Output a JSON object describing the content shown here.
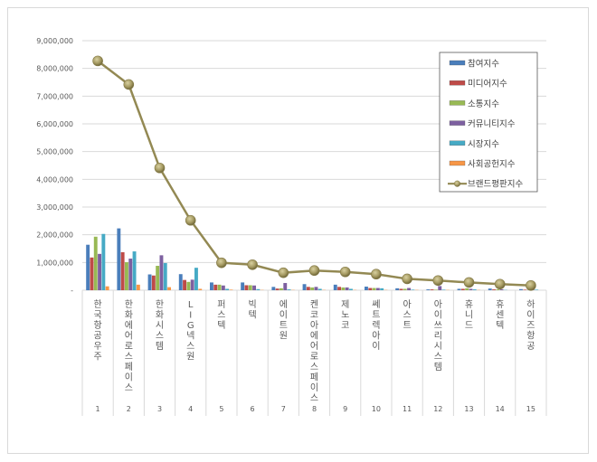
{
  "chart_data": {
    "type": "bar",
    "combo": "clustered bar + line",
    "title": "",
    "xlabel": "",
    "ylabel": "",
    "ylim": [
      0,
      9000000
    ],
    "yticks": [
      0,
      1000000,
      2000000,
      3000000,
      4000000,
      5000000,
      6000000,
      7000000,
      8000000,
      9000000
    ],
    "ytick_labels": [
      "-",
      "1,000,000",
      "2,000,000",
      "3,000,000",
      "4,000,000",
      "5,000,000",
      "6,000,000",
      "7,000,000",
      "8,000,000",
      "9,000,000"
    ],
    "grid": true,
    "legend_position": "top-right inside",
    "rank_labels": [
      "1",
      "2",
      "3",
      "4",
      "5",
      "6",
      "7",
      "8",
      "9",
      "10",
      "11",
      "12",
      "13",
      "14",
      "15"
    ],
    "categories": [
      "한국항공우주",
      "한화에어로스페이스",
      "한화시스템",
      "LIG넥스원",
      "퍼스텍",
      "빅텍",
      "에이트원",
      "켄코아에어로스페이스",
      "제노코",
      "쎄트렉아이",
      "아스트",
      "아이쓰리시스템",
      "휴니드",
      "휴센텍",
      "하이즈항공"
    ],
    "series": [
      {
        "name": "참여지수",
        "type": "bar",
        "color": "#4a7ebb",
        "values": [
          1640000,
          2230000,
          570000,
          580000,
          280000,
          280000,
          120000,
          220000,
          200000,
          130000,
          70000,
          30000,
          50000,
          60000,
          40000
        ]
      },
      {
        "name": "미디어지수",
        "type": "bar",
        "color": "#be4b48",
        "values": [
          1180000,
          1370000,
          530000,
          370000,
          200000,
          180000,
          60000,
          120000,
          120000,
          80000,
          50000,
          30000,
          50000,
          30000,
          20000
        ]
      },
      {
        "name": "소통지수",
        "type": "bar",
        "color": "#98b954",
        "values": [
          1930000,
          1010000,
          880000,
          300000,
          200000,
          180000,
          70000,
          100000,
          100000,
          80000,
          50000,
          20000,
          70000,
          30000,
          10000
        ]
      },
      {
        "name": "커뮤니티지수",
        "type": "bar",
        "color": "#7d60a0",
        "values": [
          1310000,
          1140000,
          1260000,
          380000,
          170000,
          170000,
          260000,
          120000,
          100000,
          80000,
          80000,
          150000,
          50000,
          30000,
          20000
        ]
      },
      {
        "name": "시장지수",
        "type": "bar",
        "color": "#46aac5",
        "values": [
          2030000,
          1400000,
          980000,
          810000,
          50000,
          40000,
          30000,
          50000,
          50000,
          70000,
          20000,
          20000,
          30000,
          10000,
          20000
        ]
      },
      {
        "name": "사회공헌지수",
        "type": "bar",
        "color": "#f79646",
        "values": [
          140000,
          200000,
          110000,
          50000,
          20000,
          10000,
          10000,
          10000,
          10000,
          10000,
          10000,
          10000,
          10000,
          0,
          0
        ]
      },
      {
        "name": "브랜드평판지수",
        "type": "line",
        "color": "#938953",
        "values": [
          8270000,
          7420000,
          4410000,
          2520000,
          990000,
          920000,
          630000,
          710000,
          660000,
          580000,
          410000,
          350000,
          280000,
          220000,
          170000
        ]
      }
    ]
  }
}
